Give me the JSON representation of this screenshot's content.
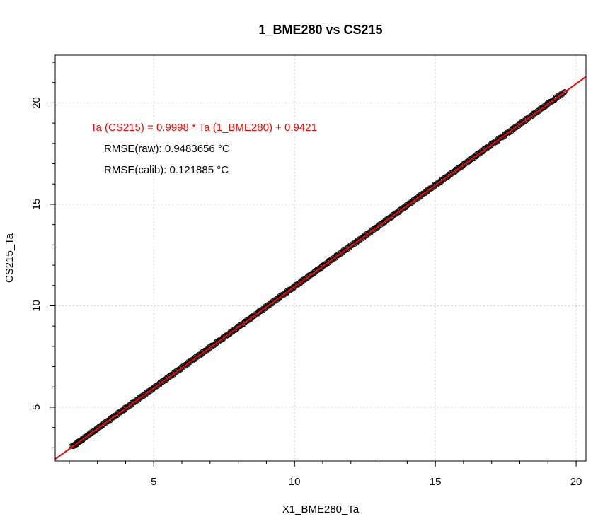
{
  "chart_data": {
    "type": "scatter",
    "title": "1_BME280 vs CS215",
    "xlabel": "X1_BME280_Ta",
    "ylabel": "CS215_Ta",
    "xlim": [
      1.5,
      20.35
    ],
    "ylim": [
      2.35,
      22.35
    ],
    "x_ticks": [
      "5",
      "10",
      "15",
      "20"
    ],
    "y_ticks": [
      "5",
      "10",
      "15",
      "20"
    ],
    "x_tick_values": [
      5,
      10,
      15,
      20
    ],
    "y_tick_values": [
      5,
      10,
      15,
      20
    ],
    "grid": true,
    "annotations": {
      "equation": "Ta (CS215) = 0.9998 * Ta (1_BME280)  + 0.9421",
      "rmse_raw": "RMSE(raw): 0.9483656 °C",
      "rmse_calib": "RMSE(calib): 0.121885 °C"
    },
    "fit_line": {
      "slope": 0.9998,
      "intercept": 0.9421
    },
    "series": [
      {
        "x": [
          2.1,
          2.5,
          3.0,
          3.5,
          4.0,
          4.5,
          5.0,
          5.5,
          6.0,
          6.5,
          7.0,
          7.5,
          8.0,
          8.5,
          9.0,
          9.5,
          10.0,
          10.5,
          11.0,
          11.5,
          12.0,
          12.5,
          13.0,
          13.5,
          14.0,
          14.5,
          15.0,
          15.5,
          16.0,
          16.5,
          17.0,
          17.5,
          18.0,
          18.5,
          19.0,
          19.6
        ],
        "y": [
          3.05,
          3.45,
          3.95,
          4.45,
          4.95,
          5.45,
          5.95,
          6.45,
          6.95,
          7.45,
          7.95,
          8.45,
          8.95,
          9.45,
          9.95,
          10.45,
          10.95,
          11.45,
          11.95,
          12.45,
          12.95,
          13.45,
          13.95,
          14.45,
          14.95,
          15.45,
          15.95,
          16.45,
          16.95,
          17.45,
          17.95,
          18.45,
          18.95,
          19.45,
          19.95,
          20.55
        ]
      }
    ],
    "colors": {
      "points": "#000000",
      "fit_line": "#ff0000",
      "equation_text": "#ff0000",
      "grid": "#d3d3d3"
    }
  }
}
